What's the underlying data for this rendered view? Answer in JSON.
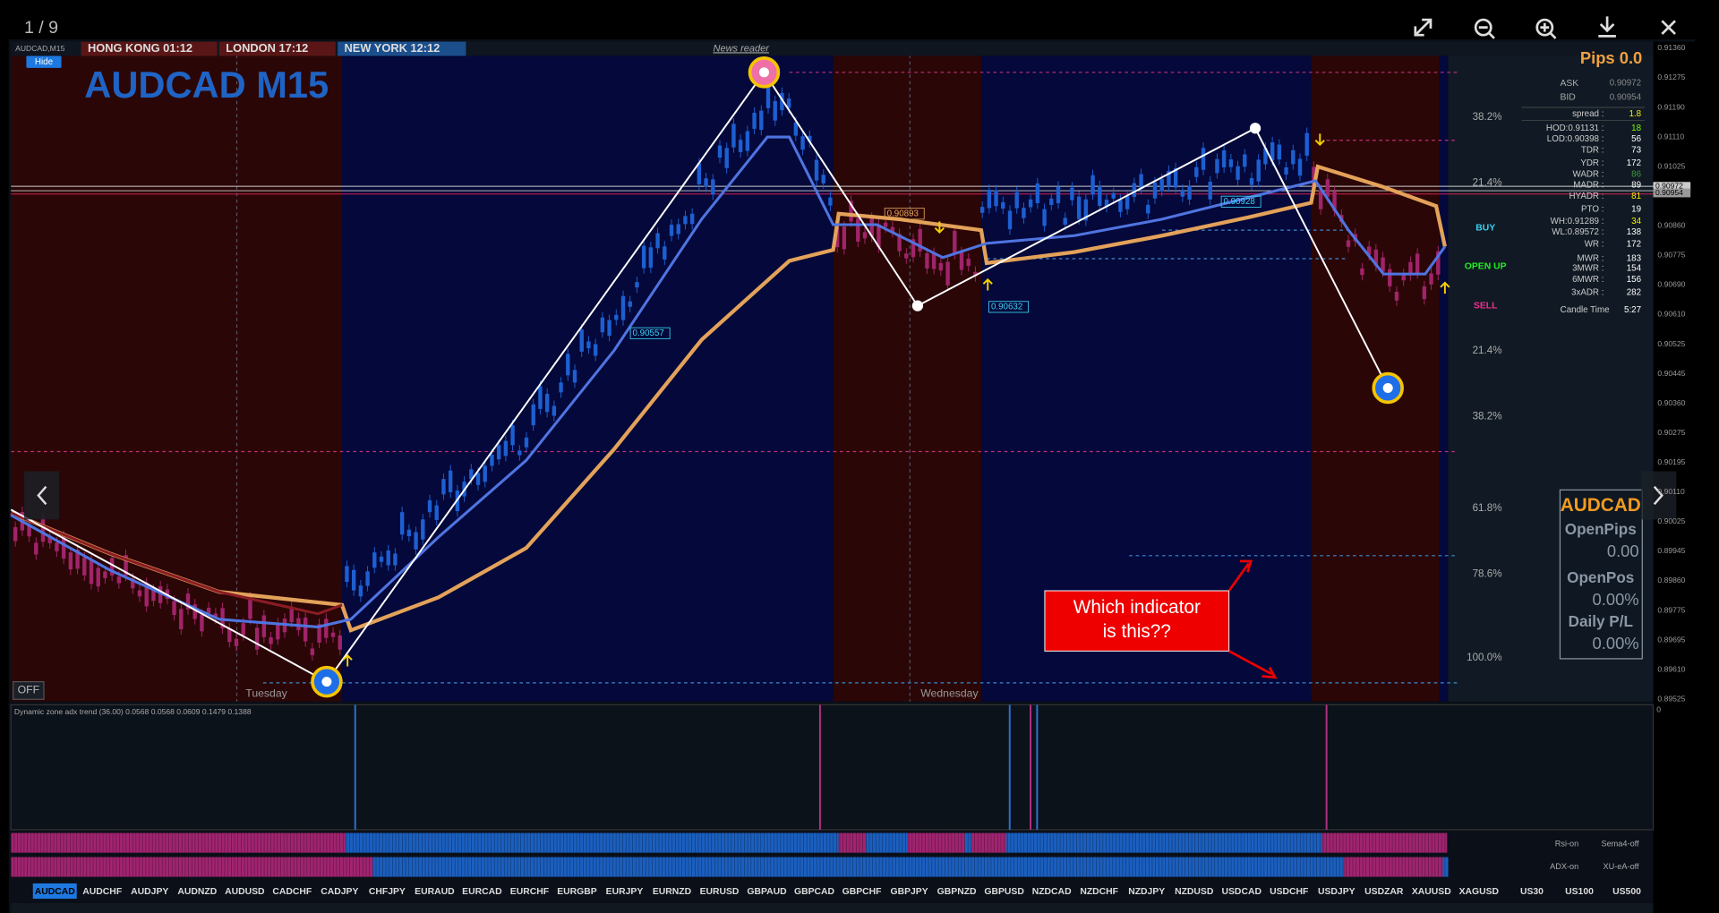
{
  "viewer": {
    "counter": "1 / 9"
  },
  "header": {
    "symbol_tab": "AUDCAD,M15",
    "sessions": [
      "HONG KONG 01:12",
      "LONDON  17:12",
      "NEW YORK 12:12"
    ],
    "news": "News reader",
    "hide": "Hide"
  },
  "chart": {
    "title": "AUDCAD M15",
    "price_axis": [
      "0.91360",
      "0.91275",
      "0.91190",
      "0.91110",
      "0.91025",
      "0.90860",
      "0.90775",
      "0.90690",
      "0.90610",
      "0.90525",
      "0.90445",
      "0.90360",
      "0.90275",
      "0.90195",
      "0.90110",
      "0.90025",
      "0.89945",
      "0.89860",
      "0.89775",
      "0.89695",
      "0.89610",
      "0.89525"
    ],
    "current_prices": [
      "0.90972",
      "0.90954"
    ],
    "price_tags": [
      "0.90893",
      "0.90557",
      "0.90632",
      "0.90928"
    ],
    "fib_levels": [
      "38.2%",
      "21.4%",
      "21.4%",
      "38.2%",
      "61.8%",
      "78.6%",
      "100.0%"
    ],
    "days": [
      "Tuesday",
      "Wednesday"
    ],
    "off": "OFF",
    "signals": [
      "BUY",
      "OPEN UP",
      "SELL"
    ]
  },
  "info_panel": {
    "pips": "Pips 0.0",
    "rows": [
      [
        "ASK",
        "0.90972"
      ],
      [
        "BID",
        "0.90954"
      ],
      [
        "spread :",
        "1.8"
      ],
      [
        "HOD:0.91131 :",
        "18"
      ],
      [
        "LOD:0.90398 :",
        "56"
      ],
      [
        "TDR :",
        "73"
      ],
      [
        "YDR :",
        "172"
      ],
      [
        "WADR :",
        "86"
      ],
      [
        "MADR :",
        "89"
      ],
      [
        "HYADR :",
        "81"
      ],
      [
        "PTO :",
        "19"
      ],
      [
        "WH:0.91289 :",
        "34"
      ],
      [
        "WL:0.89572 :",
        "138"
      ],
      [
        "WR :",
        "172"
      ],
      [
        "MWR :",
        "183"
      ],
      [
        "3MWR :",
        "154"
      ],
      [
        "6MWR :",
        "156"
      ],
      [
        "3xADR :",
        "282"
      ],
      [
        "Candle Time",
        "5:27"
      ]
    ]
  },
  "pnl_box": {
    "symbol": "AUDCAD",
    "labels": [
      "OpenPips",
      "OpenPos",
      "Daily P/L"
    ],
    "values": [
      "0.00",
      "0.00%",
      "0.00%"
    ]
  },
  "annotation": {
    "lines": [
      "Which indicator",
      "is this??"
    ]
  },
  "indicator": {
    "title": "Dynamic zone adx trend (36.00) 0.0568 0.0568 0.0609 0.1479 0.1388",
    "axis": "0"
  },
  "strips": [
    "Rsi-on",
    "Sema4-off",
    "ADX-on",
    "XU-eA-off"
  ],
  "symbols": [
    "AUDCAD",
    "AUDCHF",
    "AUDJPY",
    "AUDNZD",
    "AUDUSD",
    "CADCHF",
    "CADJPY",
    "CHFJPY",
    "EURAUD",
    "EURCAD",
    "EURCHF",
    "EURGBP",
    "EURJPY",
    "EURNZD",
    "EURUSD",
    "GBPAUD",
    "GBPCAD",
    "GBPCHF",
    "GBPJPY",
    "GBPNZD",
    "GBPUSD",
    "NZDCAD",
    "NZDCHF",
    "NZDJPY",
    "NZDUSD",
    "USDCAD",
    "USDCHF",
    "USDJPY",
    "USDZAR",
    "XAUUSD",
    "XAGUSD",
    "US30",
    "US100",
    "US500"
  ]
}
